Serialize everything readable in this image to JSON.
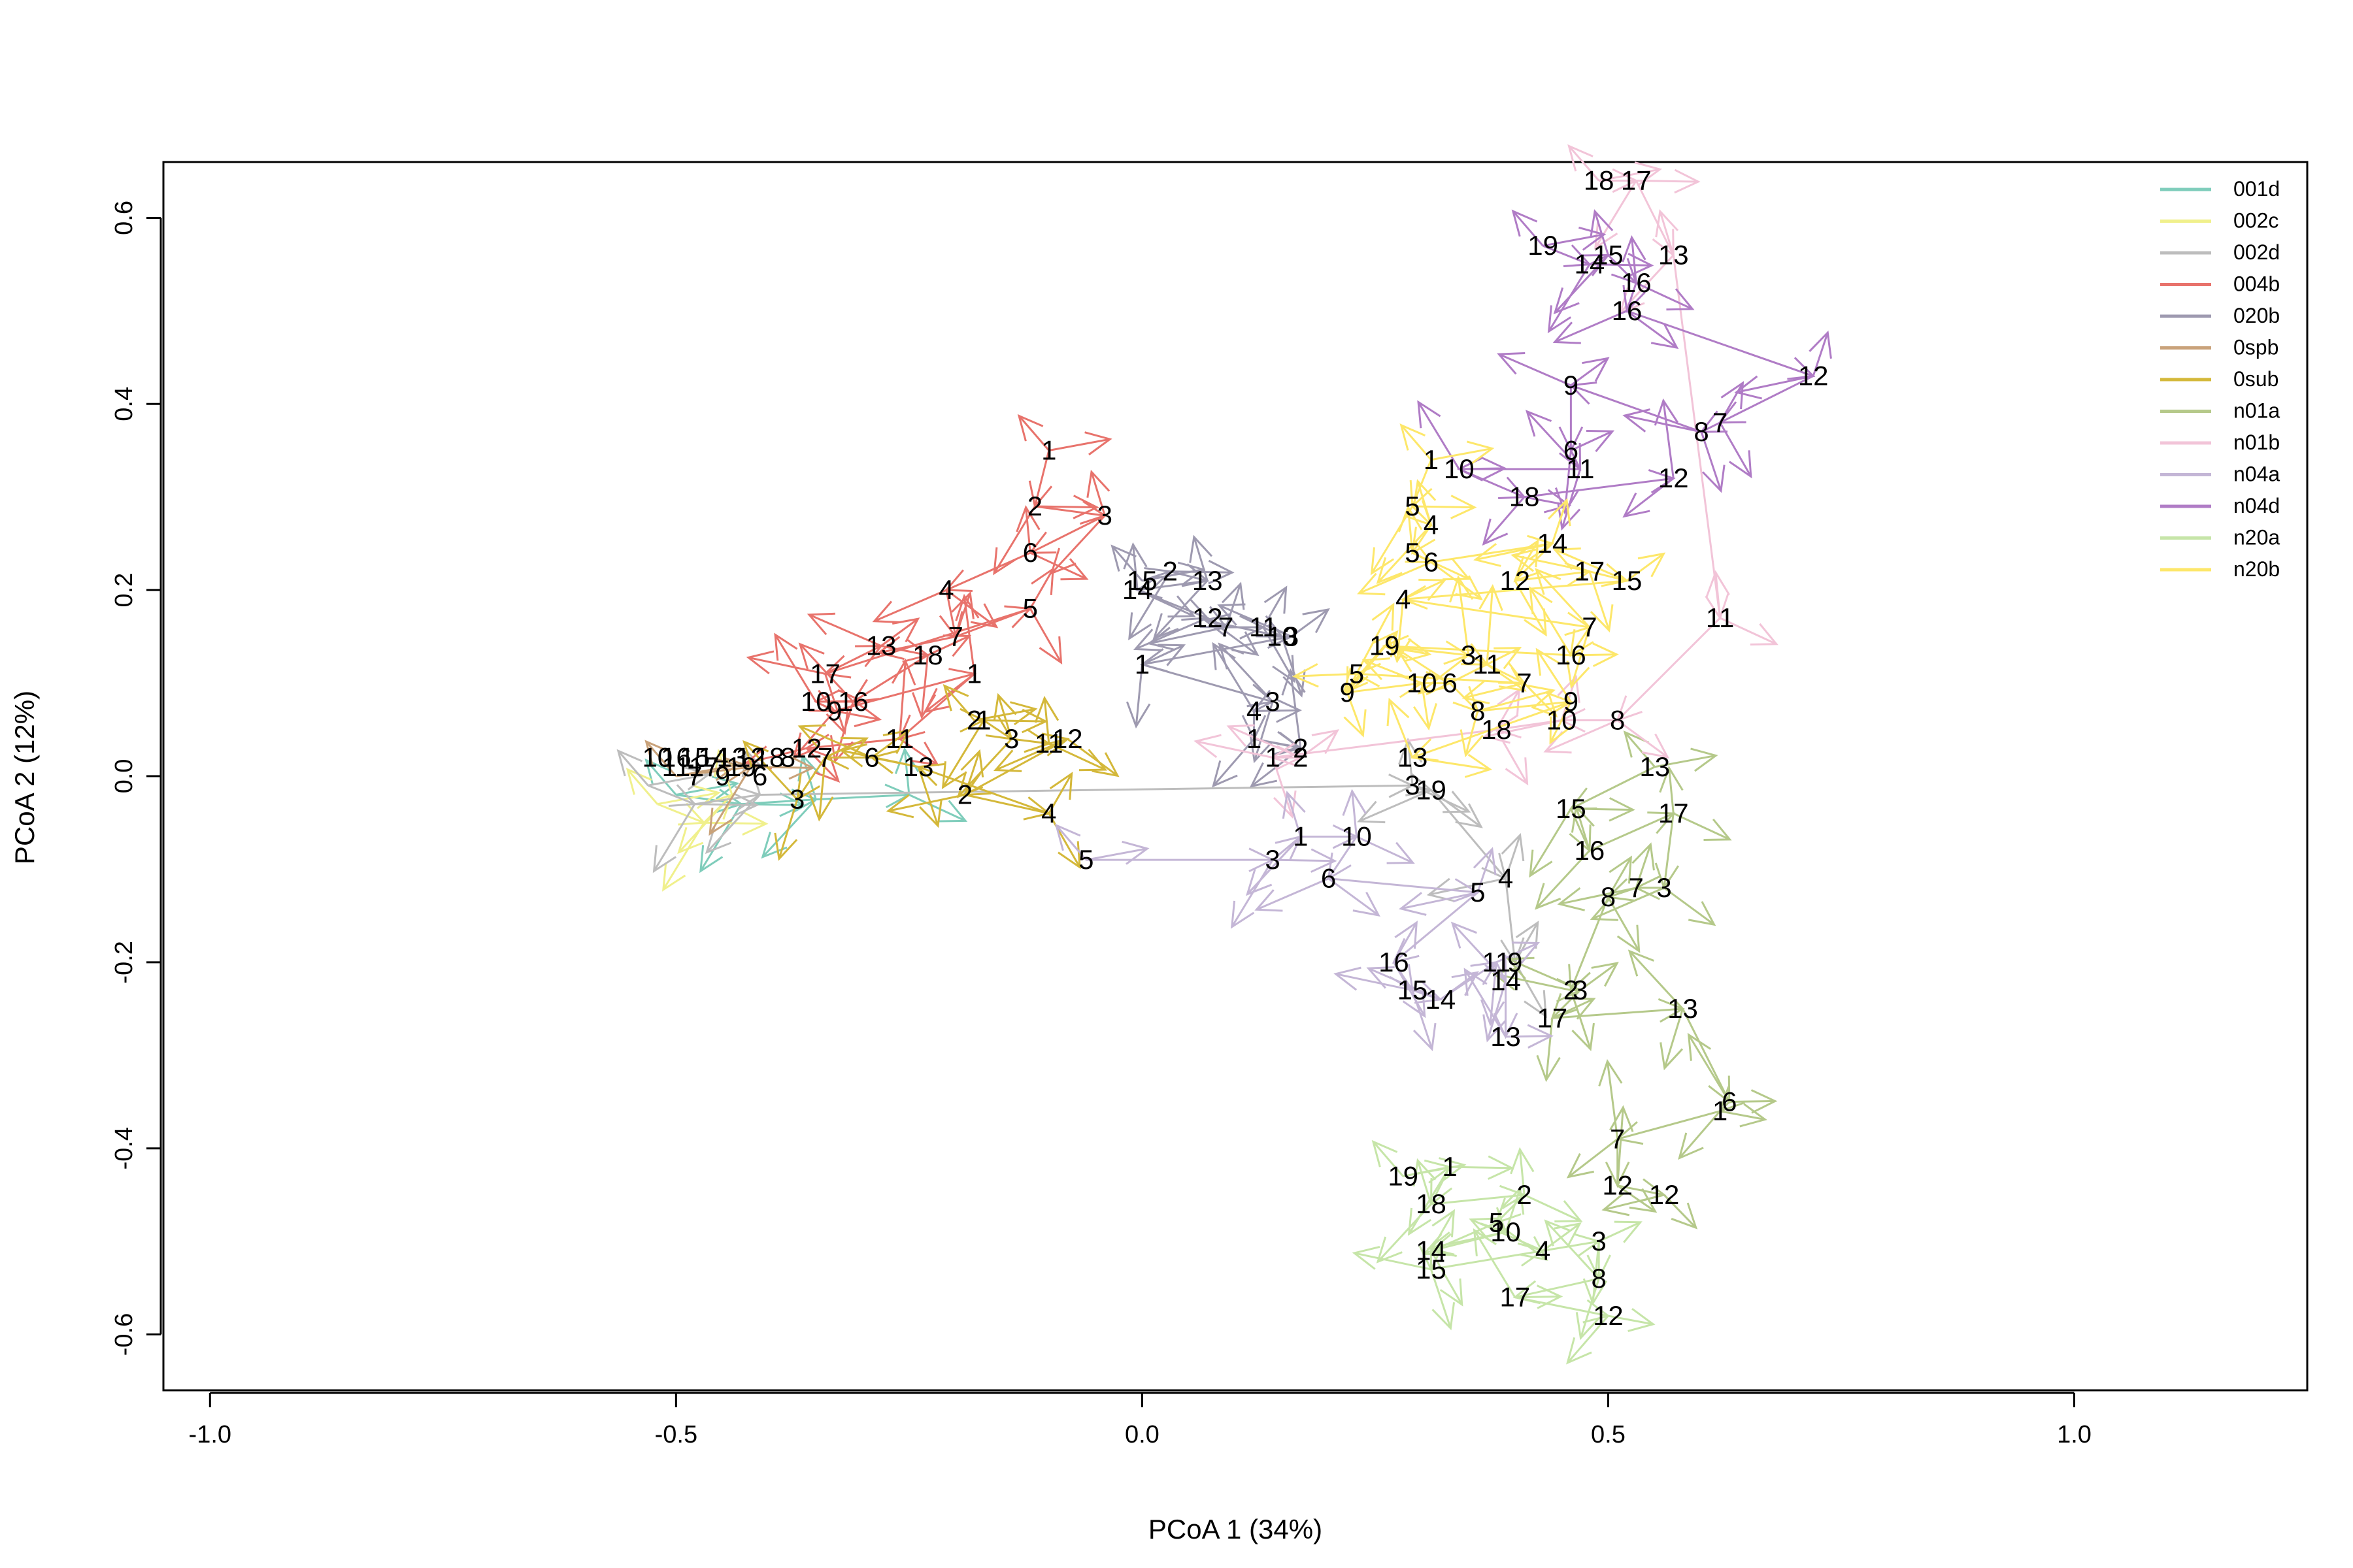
{
  "chart_data": {
    "type": "scatter",
    "xlabel": "PCoA 1 (34%)",
    "ylabel": "PCoA 2 (12%)",
    "xlim": [
      -1.05,
      1.25
    ],
    "ylim": [
      -0.66,
      0.66
    ],
    "xticks": [
      -1.0,
      -0.5,
      0.0,
      0.5,
      1.0
    ],
    "xtick_labels": [
      "-1.0",
      "-0.5",
      "0.0",
      "0.5",
      "1.0"
    ],
    "yticks": [
      -0.6,
      -0.4,
      -0.2,
      0.0,
      0.2,
      0.4,
      0.6
    ],
    "ytick_labels": [
      "-0.6",
      "-0.4",
      "-0.2",
      "0.0",
      "0.2",
      "0.4",
      "0.6"
    ],
    "grid": false,
    "legend_position": "top-right",
    "series": [
      {
        "name": "001d",
        "color": "#7fcdbb",
        "points": [
          {
            "label": "",
            "x": -0.5,
            "y": -0.02
          },
          {
            "label": "",
            "x": -0.43,
            "y": -0.03
          },
          {
            "label": "",
            "x": -0.35,
            "y": -0.025
          },
          {
            "label": "",
            "x": -0.25,
            "y": -0.02
          }
        ]
      },
      {
        "name": "002c",
        "color": "#f0f08c",
        "points": [
          {
            "label": "",
            "x": -0.52,
            "y": -0.03
          },
          {
            "label": "",
            "x": -0.47,
            "y": -0.05
          },
          {
            "label": "",
            "x": -0.44,
            "y": -0.02
          }
        ]
      },
      {
        "name": "002d",
        "color": "#bdbdbd",
        "points": [
          {
            "label": "",
            "x": -0.53,
            "y": -0.01
          },
          {
            "label": "",
            "x": -0.48,
            "y": -0.03
          },
          {
            "label": "",
            "x": -0.41,
            "y": -0.02
          },
          {
            "label": "3",
            "x": 0.29,
            "y": -0.01
          },
          {
            "label": "19",
            "x": 0.31,
            "y": -0.015
          },
          {
            "label": "4",
            "x": 0.39,
            "y": -0.11
          },
          {
            "label": "9",
            "x": 0.4,
            "y": -0.2
          }
        ]
      },
      {
        "name": "004b",
        "color": "#e8736c",
        "points": [
          {
            "label": "1",
            "x": -0.1,
            "y": 0.35
          },
          {
            "label": "2",
            "x": -0.115,
            "y": 0.29
          },
          {
            "label": "3",
            "x": -0.04,
            "y": 0.28
          },
          {
            "label": "6",
            "x": -0.12,
            "y": 0.24
          },
          {
            "label": "4",
            "x": -0.21,
            "y": 0.2
          },
          {
            "label": "7",
            "x": -0.2,
            "y": 0.15
          },
          {
            "label": "5",
            "x": -0.12,
            "y": 0.18
          },
          {
            "label": "17",
            "x": -0.34,
            "y": 0.11
          },
          {
            "label": "13",
            "x": -0.28,
            "y": 0.14
          },
          {
            "label": "18",
            "x": -0.23,
            "y": 0.13
          },
          {
            "label": "16",
            "x": -0.31,
            "y": 0.08
          },
          {
            "label": "10",
            "x": -0.35,
            "y": 0.08
          },
          {
            "label": "9",
            "x": -0.33,
            "y": 0.07
          },
          {
            "label": "1",
            "x": -0.18,
            "y": 0.11
          },
          {
            "label": "11",
            "x": -0.26,
            "y": 0.04
          },
          {
            "label": "12",
            "x": -0.36,
            "y": 0.03
          }
        ]
      },
      {
        "name": "020b",
        "color": "#9e9ab0",
        "points": [
          {
            "label": "15",
            "x": 0.0,
            "y": 0.21
          },
          {
            "label": "2",
            "x": 0.03,
            "y": 0.22
          },
          {
            "label": "13",
            "x": 0.07,
            "y": 0.21
          },
          {
            "label": "14",
            "x": -0.005,
            "y": 0.2
          },
          {
            "label": "12",
            "x": 0.07,
            "y": 0.17
          },
          {
            "label": "7",
            "x": 0.09,
            "y": 0.16
          },
          {
            "label": "11",
            "x": 0.13,
            "y": 0.16
          },
          {
            "label": "10",
            "x": 0.15,
            "y": 0.15
          },
          {
            "label": "3",
            "x": 0.16,
            "y": 0.15
          },
          {
            "label": "1",
            "x": 0.0,
            "y": 0.12
          },
          {
            "label": "3",
            "x": 0.14,
            "y": 0.08
          },
          {
            "label": "4",
            "x": 0.12,
            "y": 0.07
          },
          {
            "label": "1",
            "x": 0.12,
            "y": 0.04
          },
          {
            "label": "2",
            "x": 0.17,
            "y": 0.03
          }
        ]
      },
      {
        "name": "0spb",
        "color": "#c9a27a",
        "points": [
          {
            "label": "",
            "x": -0.5,
            "y": 0.0
          },
          {
            "label": "",
            "x": -0.42,
            "y": 0.01
          }
        ]
      },
      {
        "name": "0sub",
        "color": "#d4b83a",
        "points": [
          {
            "label": "2",
            "x": -0.18,
            "y": 0.06
          },
          {
            "label": "1",
            "x": -0.17,
            "y": 0.06
          },
          {
            "label": "3",
            "x": -0.14,
            "y": 0.04
          },
          {
            "label": "11",
            "x": -0.1,
            "y": 0.035
          },
          {
            "label": "12",
            "x": -0.08,
            "y": 0.04
          },
          {
            "label": "2",
            "x": -0.19,
            "y": -0.02
          },
          {
            "label": "4",
            "x": -0.1,
            "y": -0.04
          },
          {
            "label": "13",
            "x": -0.24,
            "y": 0.01
          },
          {
            "label": "6",
            "x": -0.29,
            "y": 0.02
          },
          {
            "label": "7",
            "x": -0.34,
            "y": 0.02
          },
          {
            "label": "3",
            "x": -0.37,
            "y": -0.025
          }
        ]
      },
      {
        "name": "n01a",
        "color": "#b5c98a",
        "points": [
          {
            "label": "13",
            "x": 0.55,
            "y": 0.01
          },
          {
            "label": "15",
            "x": 0.46,
            "y": -0.035
          },
          {
            "label": "16",
            "x": 0.48,
            "y": -0.08
          },
          {
            "label": "17",
            "x": 0.57,
            "y": -0.04
          },
          {
            "label": "3",
            "x": 0.56,
            "y": -0.12
          },
          {
            "label": "7",
            "x": 0.53,
            "y": -0.12
          },
          {
            "label": "8",
            "x": 0.5,
            "y": -0.13
          },
          {
            "label": "2",
            "x": 0.46,
            "y": -0.23
          },
          {
            "label": "3",
            "x": 0.47,
            "y": -0.23
          },
          {
            "label": "17",
            "x": 0.44,
            "y": -0.26
          },
          {
            "label": "13",
            "x": 0.58,
            "y": -0.25
          },
          {
            "label": "6",
            "x": 0.63,
            "y": -0.35
          },
          {
            "label": "1",
            "x": 0.62,
            "y": -0.36
          },
          {
            "label": "7",
            "x": 0.51,
            "y": -0.39
          },
          {
            "label": "12",
            "x": 0.51,
            "y": -0.44
          },
          {
            "label": "12",
            "x": 0.56,
            "y": -0.45
          }
        ]
      },
      {
        "name": "n01b",
        "color": "#f2c4d8",
        "points": [
          {
            "label": "18",
            "x": 0.49,
            "y": 0.64
          },
          {
            "label": "17",
            "x": 0.53,
            "y": 0.64
          },
          {
            "label": "13",
            "x": 0.57,
            "y": 0.56
          },
          {
            "label": "11",
            "x": 0.62,
            "y": 0.17
          },
          {
            "label": "8",
            "x": 0.51,
            "y": 0.06
          },
          {
            "label": "10",
            "x": 0.45,
            "y": 0.06
          },
          {
            "label": "18",
            "x": 0.38,
            "y": 0.05
          },
          {
            "label": "1",
            "x": 0.14,
            "y": 0.02
          },
          {
            "label": "2",
            "x": 0.17,
            "y": 0.02
          }
        ]
      },
      {
        "name": "n04a",
        "color": "#c4b6d6",
        "points": [
          {
            "label": "5",
            "x": -0.06,
            "y": -0.09
          },
          {
            "label": "3",
            "x": 0.14,
            "y": -0.09
          },
          {
            "label": "1",
            "x": 0.17,
            "y": -0.065
          },
          {
            "label": "10",
            "x": 0.23,
            "y": -0.065
          },
          {
            "label": "6",
            "x": 0.2,
            "y": -0.11
          },
          {
            "label": "5",
            "x": 0.36,
            "y": -0.125
          },
          {
            "label": "16",
            "x": 0.27,
            "y": -0.2
          },
          {
            "label": "15",
            "x": 0.29,
            "y": -0.23
          },
          {
            "label": "14",
            "x": 0.32,
            "y": -0.24
          },
          {
            "label": "11",
            "x": 0.38,
            "y": -0.2
          },
          {
            "label": "14",
            "x": 0.39,
            "y": -0.22
          },
          {
            "label": "13",
            "x": 0.39,
            "y": -0.28
          }
        ]
      },
      {
        "name": "n04d",
        "color": "#b07cc6",
        "points": [
          {
            "label": "19",
            "x": 0.43,
            "y": 0.57
          },
          {
            "label": "14",
            "x": 0.48,
            "y": 0.55
          },
          {
            "label": "15",
            "x": 0.5,
            "y": 0.56
          },
          {
            "label": "16",
            "x": 0.53,
            "y": 0.53
          },
          {
            "label": "16",
            "x": 0.52,
            "y": 0.5
          },
          {
            "label": "12",
            "x": 0.72,
            "y": 0.43
          },
          {
            "label": "7",
            "x": 0.62,
            "y": 0.38
          },
          {
            "label": "8",
            "x": 0.6,
            "y": 0.37
          },
          {
            "label": "9",
            "x": 0.46,
            "y": 0.42
          },
          {
            "label": "6",
            "x": 0.46,
            "y": 0.35
          },
          {
            "label": "11",
            "x": 0.47,
            "y": 0.33
          },
          {
            "label": "10",
            "x": 0.34,
            "y": 0.33
          },
          {
            "label": "18",
            "x": 0.41,
            "y": 0.3
          },
          {
            "label": "12",
            "x": 0.57,
            "y": 0.32
          }
        ]
      },
      {
        "name": "n20a",
        "color": "#c6e5a8",
        "points": [
          {
            "label": "19",
            "x": 0.28,
            "y": -0.43
          },
          {
            "label": "1",
            "x": 0.33,
            "y": -0.42
          },
          {
            "label": "18",
            "x": 0.31,
            "y": -0.46
          },
          {
            "label": "2",
            "x": 0.41,
            "y": -0.45
          },
          {
            "label": "5",
            "x": 0.38,
            "y": -0.48
          },
          {
            "label": "10",
            "x": 0.39,
            "y": -0.49
          },
          {
            "label": "14",
            "x": 0.31,
            "y": -0.51
          },
          {
            "label": "15",
            "x": 0.31,
            "y": -0.53
          },
          {
            "label": "4",
            "x": 0.43,
            "y": -0.51
          },
          {
            "label": "3",
            "x": 0.49,
            "y": -0.5
          },
          {
            "label": "8",
            "x": 0.49,
            "y": -0.54
          },
          {
            "label": "17",
            "x": 0.4,
            "y": -0.56
          },
          {
            "label": "12",
            "x": 0.5,
            "y": -0.58
          }
        ]
      },
      {
        "name": "n20b",
        "color": "#fde76a",
        "points": [
          {
            "label": "1",
            "x": 0.31,
            "y": 0.34
          },
          {
            "label": "5",
            "x": 0.29,
            "y": 0.29
          },
          {
            "label": "4",
            "x": 0.31,
            "y": 0.27
          },
          {
            "label": "5",
            "x": 0.29,
            "y": 0.24
          },
          {
            "label": "6",
            "x": 0.31,
            "y": 0.23
          },
          {
            "label": "14",
            "x": 0.44,
            "y": 0.25
          },
          {
            "label": "12",
            "x": 0.4,
            "y": 0.21
          },
          {
            "label": "17",
            "x": 0.48,
            "y": 0.22
          },
          {
            "label": "15",
            "x": 0.52,
            "y": 0.21
          },
          {
            "label": "4",
            "x": 0.28,
            "y": 0.19
          },
          {
            "label": "7",
            "x": 0.48,
            "y": 0.16
          },
          {
            "label": "16",
            "x": 0.46,
            "y": 0.13
          },
          {
            "label": "19",
            "x": 0.26,
            "y": 0.14
          },
          {
            "label": "3",
            "x": 0.35,
            "y": 0.13
          },
          {
            "label": "11",
            "x": 0.37,
            "y": 0.12
          },
          {
            "label": "7",
            "x": 0.41,
            "y": 0.1
          },
          {
            "label": "5",
            "x": 0.23,
            "y": 0.11
          },
          {
            "label": "9",
            "x": 0.22,
            "y": 0.09
          },
          {
            "label": "10",
            "x": 0.3,
            "y": 0.1
          },
          {
            "label": "6",
            "x": 0.33,
            "y": 0.1
          },
          {
            "label": "8",
            "x": 0.36,
            "y": 0.07
          },
          {
            "label": "9",
            "x": 0.46,
            "y": 0.08
          },
          {
            "label": "13",
            "x": 0.29,
            "y": 0.02
          }
        ]
      }
    ],
    "origin_cluster_labels": [
      {
        "label": "10",
        "x": -0.52,
        "y": 0.02
      },
      {
        "label": "16",
        "x": -0.5,
        "y": 0.02
      },
      {
        "label": "15",
        "x": -0.48,
        "y": 0.02
      },
      {
        "label": "14",
        "x": -0.46,
        "y": 0.02
      },
      {
        "label": "13",
        "x": -0.44,
        "y": 0.02
      },
      {
        "label": "12",
        "x": -0.42,
        "y": 0.02
      },
      {
        "label": "11",
        "x": -0.5,
        "y": 0.01
      },
      {
        "label": "18",
        "x": -0.4,
        "y": 0.02
      },
      {
        "label": "17",
        "x": -0.47,
        "y": 0.01
      },
      {
        "label": "19",
        "x": -0.43,
        "y": 0.01
      },
      {
        "label": "9",
        "x": -0.45,
        "y": 0.0
      },
      {
        "label": "8",
        "x": -0.38,
        "y": 0.02
      },
      {
        "label": "6",
        "x": -0.41,
        "y": 0.0
      },
      {
        "label": "7",
        "x": -0.48,
        "y": 0.0
      }
    ]
  }
}
